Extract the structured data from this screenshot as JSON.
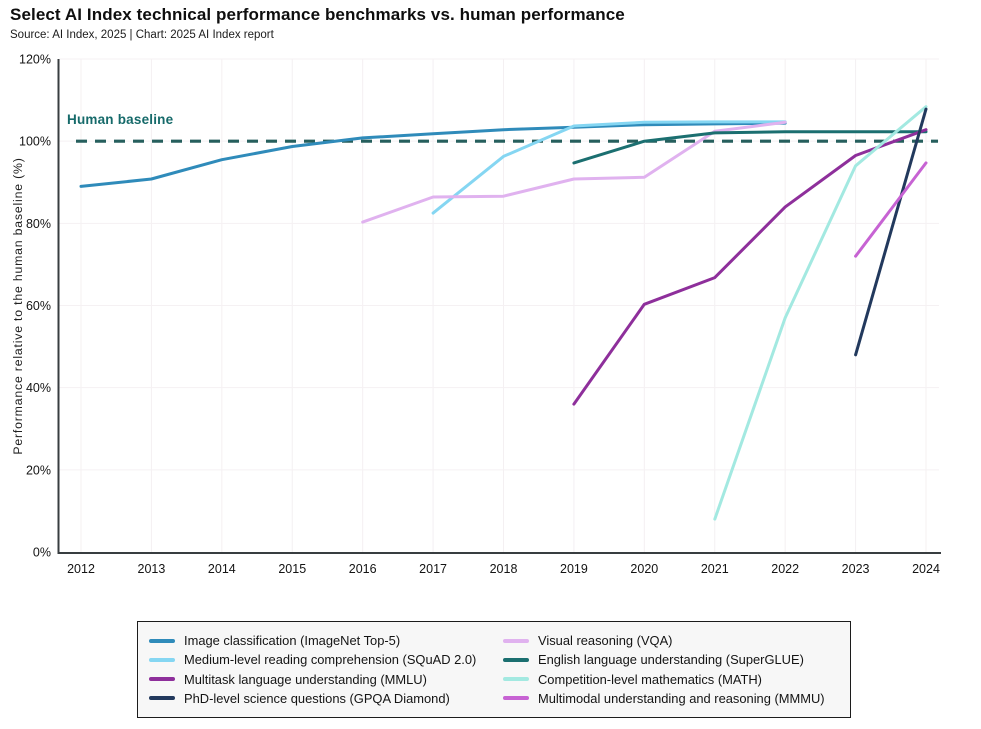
{
  "header": {
    "title": "Select AI Index technical performance benchmarks vs. human performance",
    "source": "Source: AI Index, 2025 | Chart: 2025 AI Index report"
  },
  "chart_data": {
    "type": "line",
    "title": "Select AI Index technical performance benchmarks vs. human performance",
    "xlabel": "",
    "ylabel": "Performance relative to the human baseline (%)",
    "x_ticks": [
      2012,
      2013,
      2014,
      2015,
      2016,
      2017,
      2018,
      2019,
      2020,
      2021,
      2022,
      2023,
      2024
    ],
    "xlim": [
      2012,
      2024
    ],
    "ylim": [
      0,
      120
    ],
    "y_tick_step": 20,
    "y_tick_suffix": "%",
    "grid": true,
    "legend_position": "bottom",
    "human_baseline": {
      "label": "Human baseline",
      "value": 100,
      "style": "dashed",
      "color": "#265f5d"
    },
    "series": [
      {
        "key": "imagenet",
        "name": "Image classification (ImageNet Top-5)",
        "color": "#2f8bba",
        "points": [
          [
            2012,
            89
          ],
          [
            2013,
            90.8
          ],
          [
            2014,
            95.5
          ],
          [
            2015,
            98.7
          ],
          [
            2016,
            100.8
          ],
          [
            2017,
            101.8
          ],
          [
            2018,
            102.8
          ],
          [
            2019,
            103.4
          ],
          [
            2020,
            104.0
          ],
          [
            2021,
            104.2
          ],
          [
            2022,
            104.4
          ]
        ]
      },
      {
        "key": "squad",
        "name": "Medium-level reading comprehension (SQuAD 2.0)",
        "color": "#85d6f2",
        "points": [
          [
            2017,
            82.5
          ],
          [
            2018,
            96.3
          ],
          [
            2019,
            103.7
          ],
          [
            2020,
            104.6
          ],
          [
            2021,
            104.7
          ],
          [
            2022,
            104.7
          ]
        ]
      },
      {
        "key": "mmlu",
        "name": "Multitask language understanding (MMLU)",
        "color": "#8e2f9b",
        "points": [
          [
            2019,
            36
          ],
          [
            2020,
            60.3
          ],
          [
            2021,
            66.8
          ],
          [
            2022,
            84
          ],
          [
            2023,
            96.5
          ],
          [
            2024,
            102.8
          ]
        ]
      },
      {
        "key": "gpqa",
        "name": "PhD-level science questions (GPQA Diamond)",
        "color": "#22395d",
        "points": [
          [
            2023,
            48
          ],
          [
            2024,
            107.8
          ]
        ]
      },
      {
        "key": "vqa",
        "name": "Visual reasoning (VQA)",
        "color": "#e0b2ef",
        "points": [
          [
            2016,
            80.3
          ],
          [
            2017,
            86.4
          ],
          [
            2018,
            86.6
          ],
          [
            2019,
            90.8
          ],
          [
            2020,
            91.2
          ],
          [
            2021,
            102.4
          ],
          [
            2022,
            104.6
          ]
        ]
      },
      {
        "key": "superglue",
        "name": "English language understanding (SuperGLUE)",
        "color": "#1b6f70",
        "points": [
          [
            2019,
            94.7
          ],
          [
            2020,
            100
          ],
          [
            2021,
            102
          ],
          [
            2022,
            102.3
          ],
          [
            2023,
            102.3
          ],
          [
            2024,
            102.3
          ]
        ]
      },
      {
        "key": "math",
        "name": "Competition-level mathematics (MATH)",
        "color": "#a3e9e1",
        "points": [
          [
            2021,
            8
          ],
          [
            2022,
            57
          ],
          [
            2023,
            94
          ],
          [
            2024,
            108.4
          ]
        ]
      },
      {
        "key": "mmmu",
        "name": "Multimodal understanding and reasoning (MMMU)",
        "color": "#c763d3",
        "points": [
          [
            2023,
            72
          ],
          [
            2024,
            94.7
          ]
        ]
      }
    ]
  }
}
